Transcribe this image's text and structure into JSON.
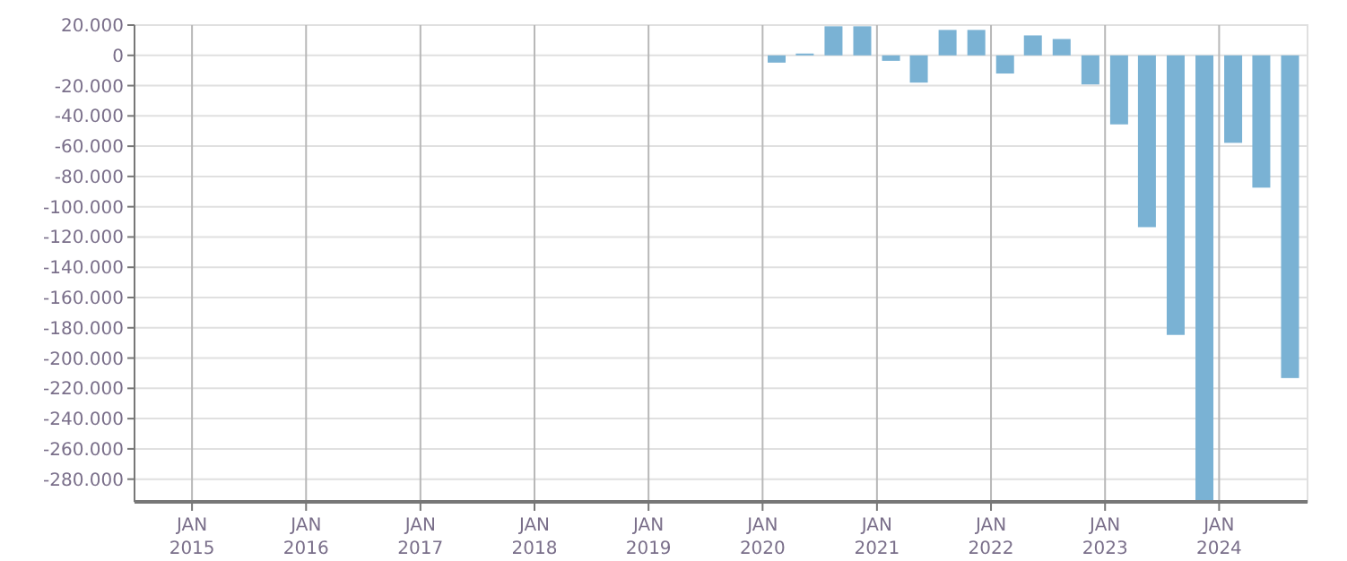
{
  "chart_data": {
    "type": "bar",
    "color": "#7ab2d4",
    "grid": true,
    "x": [
      "2020-02-15",
      "2020-05-15",
      "2020-08-15",
      "2020-11-15",
      "2021-02-15",
      "2021-05-15",
      "2021-08-15",
      "2021-11-15",
      "2022-02-15",
      "2022-05-15",
      "2022-08-15",
      "2022-11-15",
      "2023-02-15",
      "2023-05-15",
      "2023-08-15",
      "2023-11-15",
      "2024-02-15",
      "2024-05-15",
      "2024-08-15"
    ],
    "values": [
      -4800,
      1200,
      19200,
      19200,
      -3600,
      -18000,
      16800,
      16800,
      -12000,
      13200,
      10800,
      -19200,
      -45600,
      -113500,
      -184700,
      -295000,
      -57800,
      -87400,
      -213200
    ],
    "xlim": [
      "2014-07-01",
      "2024-10-10"
    ],
    "xticks": [
      {
        "value": "2015-01-01",
        "label": "JAN 2015"
      },
      {
        "value": "2016-01-01",
        "label": "JAN 2016"
      },
      {
        "value": "2017-01-01",
        "label": "JAN 2017"
      },
      {
        "value": "2018-01-01",
        "label": "JAN 2018"
      },
      {
        "value": "2019-01-01",
        "label": "JAN 2019"
      },
      {
        "value": "2020-01-01",
        "label": "JAN 2020"
      },
      {
        "value": "2021-01-01",
        "label": "JAN 2021"
      },
      {
        "value": "2022-01-01",
        "label": "JAN 2022"
      },
      {
        "value": "2023-01-01",
        "label": "JAN 2023"
      },
      {
        "value": "2024-01-01",
        "label": "JAN 2024"
      }
    ],
    "ylim": [
      -295000,
      20000
    ],
    "yticks": [
      {
        "value": 20000,
        "label": "20.000"
      },
      0,
      {
        "value": -20000,
        "label": "-20.000"
      },
      {
        "value": -40000,
        "label": "-40.000"
      },
      {
        "value": -60000,
        "label": "-60.000"
      },
      {
        "value": -80000,
        "label": "-80.000"
      },
      {
        "value": -100000,
        "label": "-100.000"
      },
      {
        "value": -120000,
        "label": "-120.000"
      },
      {
        "value": -140000,
        "label": "-140.000"
      },
      {
        "value": -160000,
        "label": "-160.000"
      },
      {
        "value": -180000,
        "label": "-180.000"
      },
      {
        "value": -200000,
        "label": "-200.000"
      },
      {
        "value": -220000,
        "label": "-220.000"
      },
      {
        "value": -240000,
        "label": "-240.000"
      },
      {
        "value": -260000,
        "label": "-260.000"
      },
      {
        "value": -280000,
        "label": "-280.000"
      }
    ]
  }
}
